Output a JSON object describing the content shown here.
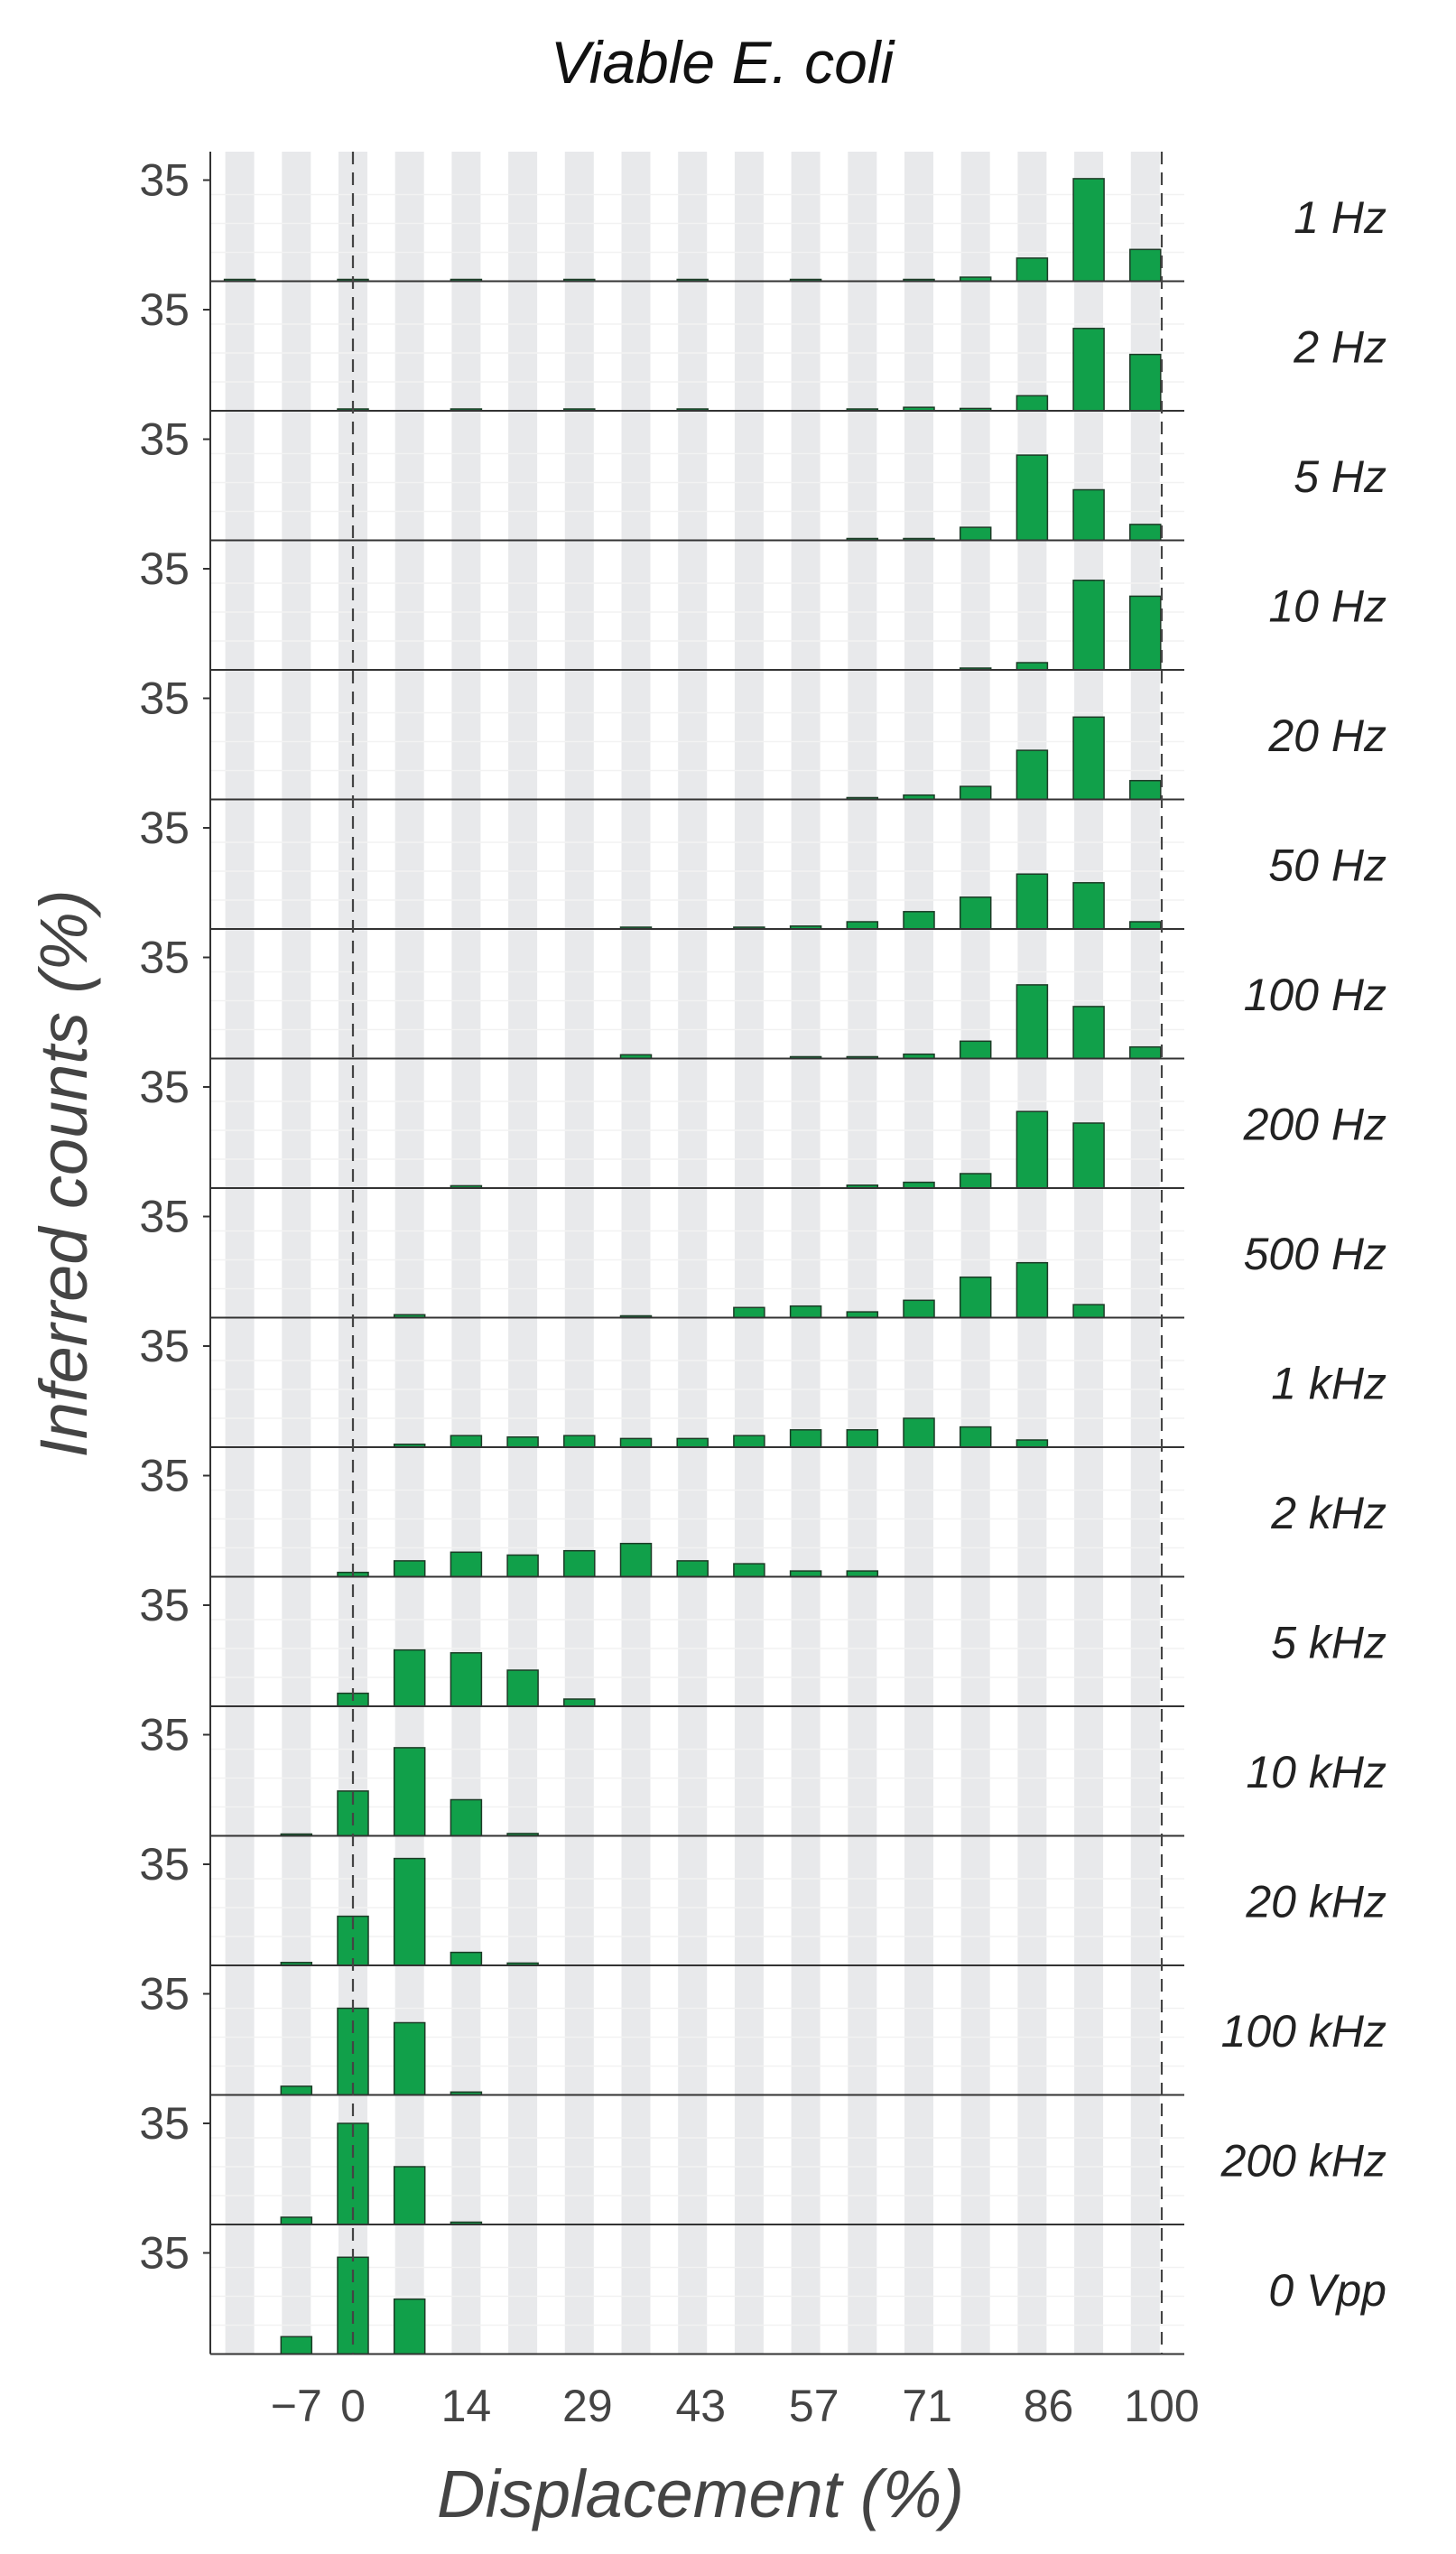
{
  "chart_data": {
    "type": "bar",
    "title": "Viable E. coli",
    "xlabel": "Displacement (%)",
    "ylabel": "Inferred counts (%)",
    "x_tick_labels": [
      "−7",
      "0",
      "14",
      "29",
      "43",
      "57",
      "71",
      "86",
      "100"
    ],
    "y_tick_label": "35",
    "categories": [
      "−14",
      "−7",
      "0",
      "7",
      "14",
      "21",
      "29",
      "36",
      "43",
      "50",
      "57",
      "64",
      "71",
      "79",
      "86",
      "93",
      "100"
    ],
    "reference_lines_x": [
      0,
      100
    ],
    "bar_color": "#11a04a",
    "band_color": "#e8e9eb",
    "grid": true,
    "panels": [
      {
        "label": "1 Hz",
        "values": [
          0.3,
          0,
          0.4,
          0,
          0.2,
          0,
          0.4,
          0,
          0.4,
          0,
          0.4,
          0,
          0.4,
          1.4,
          8,
          35.5,
          11
        ]
      },
      {
        "label": "2 Hz",
        "values": [
          0,
          0,
          0.4,
          0,
          0.3,
          0,
          0.3,
          0,
          0.3,
          0,
          0,
          0.3,
          1.2,
          0.8,
          5.2,
          28.5,
          19.5
        ]
      },
      {
        "label": "5 Hz",
        "values": [
          0,
          0,
          0,
          0,
          0,
          0,
          0,
          0,
          0,
          0,
          0,
          0.4,
          0.6,
          4.5,
          29.5,
          17.5,
          5.5
        ]
      },
      {
        "label": "10 Hz",
        "values": [
          0,
          0,
          0,
          0,
          0,
          0,
          0,
          0,
          0,
          0,
          0,
          0,
          0,
          0.3,
          2.5,
          31,
          25.5
        ]
      },
      {
        "label": "20 Hz",
        "values": [
          0,
          0,
          0,
          0,
          0,
          0,
          0,
          0,
          0,
          0,
          0,
          0.5,
          1.5,
          4.5,
          17,
          28.5,
          6.5
        ]
      },
      {
        "label": "50 Hz",
        "values": [
          0,
          0,
          0,
          0,
          0,
          0,
          0,
          0.3,
          0,
          0.3,
          1,
          2.5,
          6,
          11,
          19,
          16,
          2.5
        ]
      },
      {
        "label": "100 Hz",
        "values": [
          0,
          0,
          0,
          0,
          0,
          0,
          0,
          1.3,
          0,
          0,
          0.5,
          0.5,
          1.5,
          6,
          25.5,
          18,
          4
        ]
      },
      {
        "label": "200 Hz",
        "values": [
          0,
          0,
          0,
          0,
          0.8,
          0,
          0,
          0,
          0,
          0,
          0,
          1,
          2,
          5,
          26.5,
          22.5,
          0
        ]
      },
      {
        "label": "500 Hz",
        "values": [
          0,
          0,
          0,
          1,
          0,
          0,
          0,
          0.3,
          0,
          3.5,
          4,
          2,
          6,
          14,
          19,
          4.5,
          0
        ]
      },
      {
        "label": "1 kHz",
        "values": [
          0,
          0,
          0,
          1,
          4,
          3.5,
          4,
          3,
          3,
          4,
          6,
          6,
          10,
          7,
          2.5,
          0,
          0
        ]
      },
      {
        "label": "2 kHz",
        "values": [
          0,
          0,
          1.5,
          5.5,
          8.5,
          7.5,
          9,
          11.5,
          5.5,
          4.5,
          2,
          2,
          0,
          0,
          0,
          0,
          0
        ]
      },
      {
        "label": "5 kHz",
        "values": [
          0,
          0,
          4.5,
          19.5,
          18.5,
          12.5,
          2.5,
          0,
          0,
          0,
          0,
          0,
          0,
          0,
          0,
          0,
          0
        ]
      },
      {
        "label": "10 kHz",
        "values": [
          0,
          0.3,
          15.5,
          30.5,
          12.5,
          0.8,
          0,
          0,
          0,
          0,
          0,
          0,
          0,
          0,
          0,
          0,
          0
        ]
      },
      {
        "label": "20 kHz",
        "values": [
          0,
          1,
          17,
          37,
          4.5,
          0.8,
          0,
          0,
          0,
          0,
          0,
          0,
          0,
          0,
          0,
          0,
          0
        ]
      },
      {
        "label": "100 kHz",
        "values": [
          0,
          3,
          30,
          25,
          1,
          0,
          0,
          0,
          0,
          0,
          0,
          0,
          0,
          0,
          0,
          0,
          0
        ]
      },
      {
        "label": "200 kHz",
        "values": [
          0,
          2.5,
          35,
          20,
          0.8,
          0,
          0,
          0,
          0,
          0,
          0,
          0,
          0,
          0,
          0,
          0,
          0
        ]
      },
      {
        "label": "0 Vpp",
        "values": [
          0,
          6,
          33.5,
          19,
          0,
          0,
          0,
          0,
          0,
          0,
          0,
          0,
          0,
          0,
          0,
          0,
          0
        ]
      }
    ]
  }
}
